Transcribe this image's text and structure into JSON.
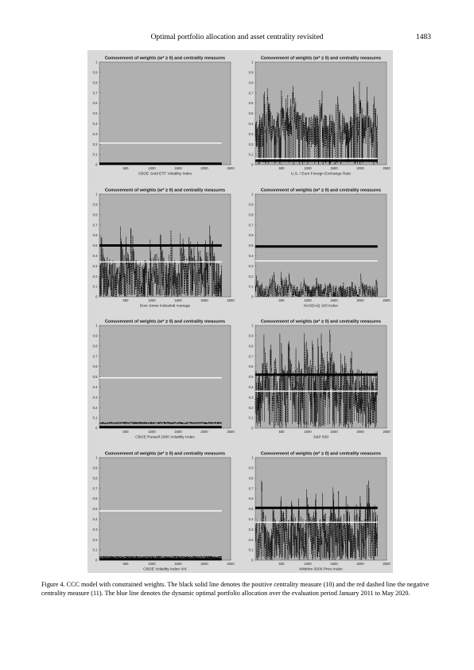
{
  "header": {
    "title": "Optimal portfolio allocation and asset centrality revisited",
    "page_number": "1483"
  },
  "figure": {
    "caption": "Figure 4.  CCC model with constrained weights. The black solid line denotes the positive centrality measure (10) and the red dashed line the negative centrality measure (11). The blue line denotes the dynamic optimal portfolio allocation over the evaluation period January 2011 to May 2020."
  },
  "chart_data": [
    {
      "type": "line",
      "title": "Comovement of weights (w* ≥ 0) and centrality measures",
      "xlabel": "CBOE Gold ETF Volatility Index",
      "yticks": [
        "0",
        "0.1",
        "0.2",
        "0.3",
        "0.4",
        "0.5",
        "0.6",
        "0.7",
        "0.8",
        "0.9",
        "1"
      ],
      "xticks": [
        "500",
        "1000",
        "1500",
        "2000",
        "2500"
      ],
      "xlim": [
        0,
        2500
      ],
      "ylim": [
        0,
        1
      ],
      "positive_centrality": 0.0,
      "negative_centrality": 0.21,
      "weight_level": 0.0,
      "weight_amplitude": 0.01,
      "seed": 11
    },
    {
      "type": "line",
      "title": "Comovement of weights (w* ≥ 0) and centrality measures",
      "xlabel": "U.S. / Euro Foreign Exchange Rate",
      "yticks": [
        "0",
        "0.1",
        "0.2",
        "0.3",
        "0.4",
        "0.5",
        "0.6",
        "0.7",
        "0.8",
        "0.9",
        "1"
      ],
      "xticks": [
        "500",
        "1000",
        "1500",
        "2000",
        "2500"
      ],
      "xlim": [
        0,
        2500
      ],
      "ylim": [
        0,
        1
      ],
      "positive_centrality": 0.04,
      "negative_centrality": 0.06,
      "weight_level": 0.32,
      "weight_amplitude": 0.3,
      "seed": 23
    },
    {
      "type": "line",
      "title": "Comovement of weights (w* ≥ 0) and centrality measures",
      "xlabel": "Dow Jones Industrial Average",
      "yticks": [
        "0",
        "0.1",
        "0.2",
        "0.3",
        "0.4",
        "0.5",
        "0.6",
        "0.7",
        "0.8",
        "0.9",
        "1"
      ],
      "xticks": [
        "500",
        "1000",
        "1500",
        "2000",
        "2500"
      ],
      "xlim": [
        0,
        2500
      ],
      "ylim": [
        0,
        1
      ],
      "positive_centrality": 0.5,
      "negative_centrality": 0.34,
      "weight_level": 0.15,
      "weight_amplitude": 0.35,
      "seed": 37
    },
    {
      "type": "line",
      "title": "Comovement of weights (w* ≥ 0) and centrality measures",
      "xlabel": "NASDAQ 100 Index",
      "yticks": [
        "0",
        "0.1",
        "0.2",
        "0.3",
        "0.4",
        "0.5",
        "0.6",
        "0.7",
        "0.8",
        "0.9",
        "1"
      ],
      "xticks": [
        "500",
        "1000",
        "1500",
        "2000",
        "2500"
      ],
      "xlim": [
        0,
        2500
      ],
      "ylim": [
        0,
        1
      ],
      "positive_centrality": 0.49,
      "negative_centrality": 0.35,
      "weight_level": 0.04,
      "weight_amplitude": 0.12,
      "seed": 41
    },
    {
      "type": "line",
      "title": "Comovement of weights (w* ≥ 0) and centrality measures",
      "xlabel": "CBOE Russell 2000 Volatility Index",
      "yticks": [
        "0",
        "0.1",
        "0.2",
        "0.3",
        "0.4",
        "0.5",
        "0.6",
        "0.7",
        "0.8",
        "0.9",
        "1"
      ],
      "xticks": [
        "500",
        "1000",
        "1500",
        "2000",
        "2500"
      ],
      "xlim": [
        0,
        2500
      ],
      "ylim": [
        0,
        1
      ],
      "positive_centrality": 0.0,
      "negative_centrality": 0.49,
      "weight_level": 0.04,
      "weight_amplitude": 0.02,
      "seed": 53
    },
    {
      "type": "line",
      "title": "Comovement of weights (w* ≥ 0) and centrality measures",
      "xlabel": "S&P 500",
      "yticks": [
        "0",
        "0.1",
        "0.2",
        "0.3",
        "0.4",
        "0.5",
        "0.6",
        "0.7",
        "0.8",
        "0.9",
        "1"
      ],
      "xticks": [
        "500",
        "1000",
        "1500",
        "2000",
        "2500"
      ],
      "xlim": [
        0,
        2500
      ],
      "ylim": [
        0,
        1
      ],
      "positive_centrality": 0.52,
      "negative_centrality": 0.36,
      "weight_level": 0.35,
      "weight_amplitude": 0.4,
      "seed": 67
    },
    {
      "type": "line",
      "title": "Comovement of weights (w* ≥ 0) and centrality measures",
      "xlabel": "CBOE Volatility Index VIX",
      "yticks": [
        "0",
        "0.1",
        "0.2",
        "0.3",
        "0.4",
        "0.5",
        "0.6",
        "0.7",
        "0.8",
        "0.9",
        "1"
      ],
      "xticks": [
        "500",
        "1000",
        "1500",
        "2000",
        "2500"
      ],
      "xlim": [
        0,
        2500
      ],
      "ylim": [
        0,
        1
      ],
      "positive_centrality": 0.0,
      "negative_centrality": 0.48,
      "weight_level": 0.02,
      "weight_amplitude": 0.02,
      "seed": 71
    },
    {
      "type": "line",
      "title": "Comovement of weights (w* ≥ 0) and centrality measures",
      "xlabel": "Wilshire 5000 Price Index",
      "yticks": [
        "0",
        "0.1",
        "0.2",
        "0.3",
        "0.4",
        "0.5",
        "0.6",
        "0.7",
        "0.8",
        "0.9",
        "1"
      ],
      "xticks": [
        "500",
        "1000",
        "1500",
        "2000",
        "2500"
      ],
      "xlim": [
        0,
        2500
      ],
      "ylim": [
        0,
        1
      ],
      "positive_centrality": 0.51,
      "negative_centrality": 0.37,
      "weight_level": 0.2,
      "weight_amplitude": 0.35,
      "seed": 83
    }
  ]
}
